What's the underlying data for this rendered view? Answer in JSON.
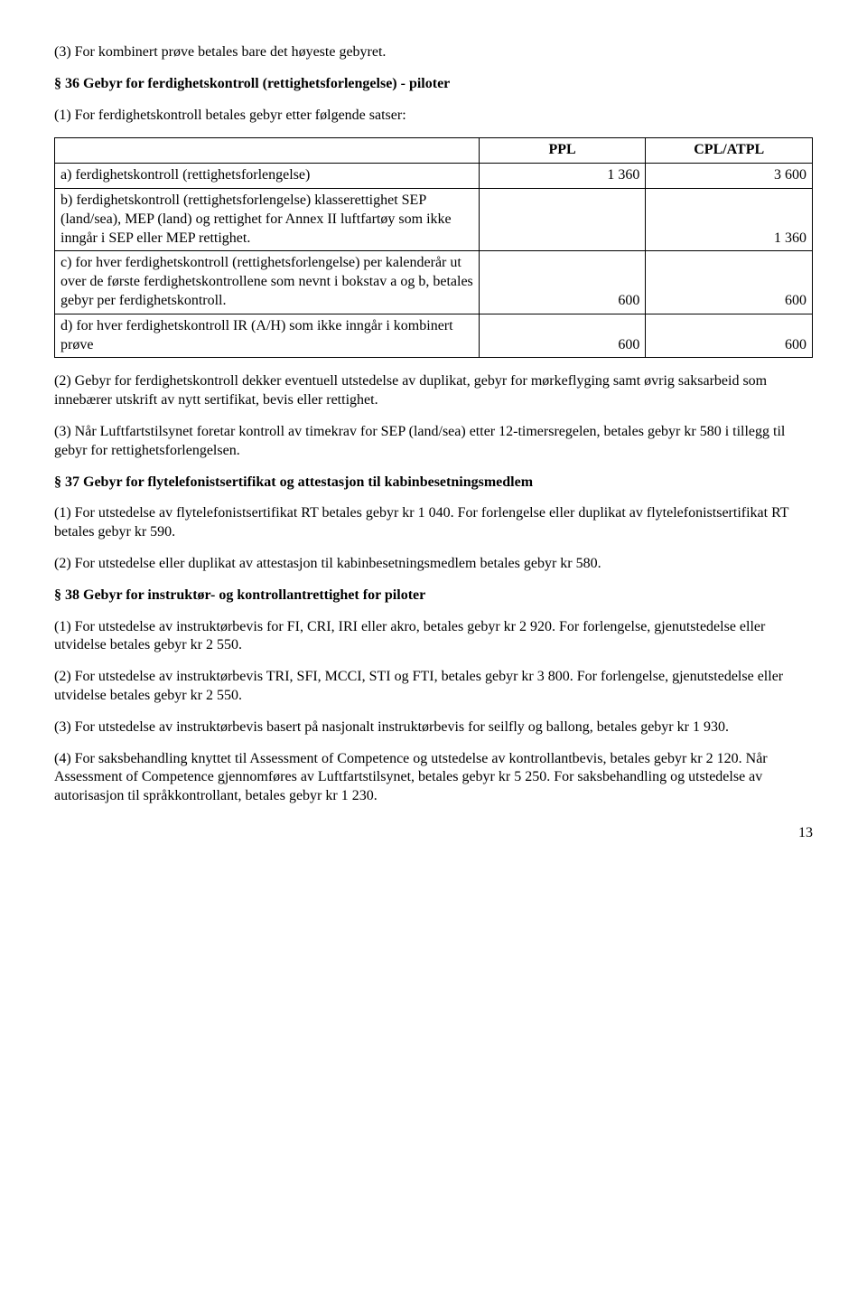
{
  "top_para": "(3) For kombinert prøve betales bare det høyeste gebyret.",
  "s36": {
    "heading": "§ 36 Gebyr for ferdighetskontroll (rettighetsforlengelse) - piloter",
    "intro": "(1) For ferdighetskontroll betales gebyr etter følgende satser:",
    "table": {
      "col_empty": "",
      "col_ppl": "PPL",
      "col_cpl": "CPL/ATPL",
      "row_a_label": "a) ferdighetskontroll (rettighetsforlengelse)",
      "row_a_ppl": "1 360",
      "row_a_cpl": "3 600",
      "row_b_label": "b) ferdighetskontroll (rettighetsforlengelse) klasserettighet SEP (land/sea), MEP (land) og rettighet for Annex II luftfartøy som ikke inngår i SEP eller MEP rettighet.",
      "row_b_ppl": "",
      "row_b_cpl": "1 360",
      "row_c_label": "c) for hver ferdighetskontroll (rettighetsforlengelse) per kalenderår ut over de første ferdighetskontrollene som nevnt i bokstav a og b, betales gebyr per ferdighetskontroll.",
      "row_c_ppl": "600",
      "row_c_cpl": "600",
      "row_d_label": "d) for hver ferdighetskontroll IR (A/H) som ikke inngår i kombinert prøve",
      "row_d_ppl": "600",
      "row_d_cpl": "600"
    },
    "p2": "(2) Gebyr for ferdighetskontroll dekker eventuell utstedelse av duplikat, gebyr for mørkeflyging samt øvrig saksarbeid som innebærer utskrift av nytt sertifikat, bevis eller rettighet.",
    "p3": "(3) Når Luftfartstilsynet foretar kontroll av timekrav for SEP (land/sea) etter 12-timersregelen, betales gebyr kr 580 i tillegg til gebyr for rettighetsforlengelsen."
  },
  "s37": {
    "heading": "§ 37 Gebyr for flytelefonistsertifikat og attestasjon til kabinbesetningsmedlem",
    "p1": "(1) For utstedelse av flytelefonistsertifikat RT betales gebyr kr 1 040. For forlengelse eller duplikat av flytelefonistsertifikat RT betales gebyr kr 590.",
    "p2": "(2) For utstedelse eller duplikat av attestasjon til kabinbesetningsmedlem betales gebyr kr 580."
  },
  "s38": {
    "heading": "§ 38 Gebyr for instruktør- og kontrollantrettighet for piloter",
    "p1": "(1) For utstedelse av instruktørbevis for FI, CRI, IRI eller akro, betales gebyr kr 2 920. For forlengelse, gjenutstedelse eller utvidelse betales gebyr kr 2 550.",
    "p2": "(2) For utstedelse av instruktørbevis TRI, SFI, MCCI, STI og FTI, betales gebyr kr 3 800. For forlengelse, gjenutstedelse eller utvidelse betales gebyr kr 2 550.",
    "p3": "(3) For utstedelse av instruktørbevis basert på nasjonalt instruktørbevis for seilfly og ballong, betales gebyr kr 1 930.",
    "p4": "(4) For saksbehandling knyttet til Assessment of Competence og utstedelse av kontrollantbevis, betales gebyr kr 2 120. Når Assessment of Competence gjennomføres av Luftfartstilsynet, betales gebyr kr 5 250. For saksbehandling og utstedelse av autorisasjon til språkkontrollant, betales gebyr kr 1 230."
  },
  "page_number": "13"
}
